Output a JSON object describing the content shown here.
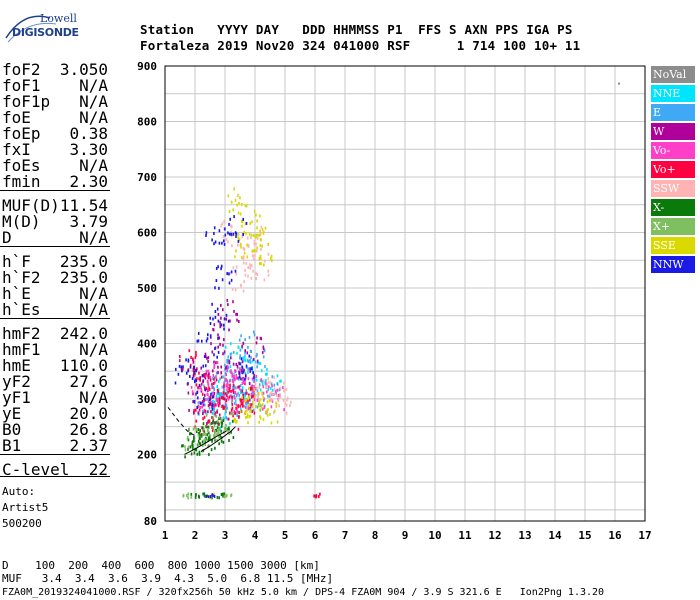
{
  "logo": {
    "line1": "Lowell",
    "line2": "DIGISONDE"
  },
  "header": {
    "labels": "Station   YYYY DAY   DDD HHMMSS P1  FFS S AXN PPS IGA PS",
    "values": "Fortaleza 2019 Nov20 324 041000 RSF      1 714 100 10+ 11"
  },
  "params": [
    {
      "key": "foF2",
      "value": "3.050"
    },
    {
      "key": "foF1",
      "value": "N/A"
    },
    {
      "key": "foF1p",
      "value": "N/A"
    },
    {
      "key": "foE",
      "value": "N/A"
    },
    {
      "key": "foEp",
      "value": "0.38"
    },
    {
      "key": "fxI",
      "value": "3.30"
    },
    {
      "key": "foEs",
      "value": "N/A"
    },
    {
      "key": "fmin",
      "value": "2.30"
    },
    {
      "key": "MUF(D)",
      "value": "11.54"
    },
    {
      "key": "M(D)",
      "value": "3.79"
    },
    {
      "key": "D",
      "value": "N/A"
    },
    {
      "key": "h`F",
      "value": "235.0"
    },
    {
      "key": "h`F2",
      "value": "235.0"
    },
    {
      "key": "h`E",
      "value": "N/A"
    },
    {
      "key": "h`Es",
      "value": "N/A"
    },
    {
      "key": "hmF2",
      "value": "242.0"
    },
    {
      "key": "hmF1",
      "value": "N/A"
    },
    {
      "key": "hmE",
      "value": "110.0"
    },
    {
      "key": "yF2",
      "value": "27.6"
    },
    {
      "key": "yF1",
      "value": "N/A"
    },
    {
      "key": "yE",
      "value": "20.0"
    },
    {
      "key": "B0",
      "value": "26.8"
    },
    {
      "key": "B1",
      "value": "2.37"
    },
    {
      "key": "C-level",
      "value": "22"
    }
  ],
  "auto": {
    "line1": "Auto:",
    "line2": "Artist5",
    "line3": "500200"
  },
  "bottom": {
    "d_row": "D    100  200  400  600  800 1000 1500 3000 [km]",
    "muf_row": "MUF   3.4  3.4  3.6  3.9  4.3  5.0  6.8 11.5 [MHz]"
  },
  "footer": "FZA0M_2019324041000.RSF / 320fx256h 50 kHz 5.0 km / DPS-4 FZA0M 904 / 3.9 S 321.6 E   Ion2Png 1.3.20",
  "legend": [
    {
      "label": "NoVal",
      "color": "#8c8c8c"
    },
    {
      "label": "NNE",
      "color": "#00e5ff"
    },
    {
      "label": "E",
      "color": "#3fa9f5"
    },
    {
      "label": "W",
      "color": "#b0009a"
    },
    {
      "label": "Vo-",
      "color": "#ff3fc8"
    },
    {
      "label": "Vo+",
      "color": "#ff0040"
    },
    {
      "label": "SSW",
      "color": "#ffb3b3"
    },
    {
      "label": "X-",
      "color": "#0a7a0a"
    },
    {
      "label": "X+",
      "color": "#7fbf5f"
    },
    {
      "label": "SSE",
      "color": "#d9d900"
    },
    {
      "label": "NNW",
      "color": "#1a1ae6"
    }
  ],
  "chart_data": {
    "type": "scatter",
    "title": "",
    "xlabel": "",
    "ylabel": "",
    "xlim": [
      1,
      17
    ],
    "ylim": [
      80,
      900
    ],
    "xticks": [
      1,
      2,
      3,
      4,
      5,
      6,
      7,
      8,
      9,
      10,
      11,
      12,
      13,
      14,
      15,
      16,
      17
    ],
    "yticks": [
      80,
      200,
      300,
      400,
      500,
      600,
      700,
      800,
      900
    ],
    "grid": true,
    "legend_position": "right",
    "series": [
      {
        "name": "NoVal",
        "color": "#8c8c8c",
        "points": [
          [
            16.1,
            870
          ]
        ]
      },
      {
        "name": "NNE",
        "color": "#00e5ff",
        "points": [
          [
            2.8,
            300
          ],
          [
            3.1,
            330
          ],
          [
            3.5,
            320
          ],
          [
            3.9,
            350
          ],
          [
            4.2,
            330
          ],
          [
            2.6,
            320
          ],
          [
            3.3,
            380
          ],
          [
            3.7,
            290
          ],
          [
            4.5,
            340
          ],
          [
            2.9,
            270
          ]
        ]
      },
      {
        "name": "E",
        "color": "#3fa9f5",
        "points": [
          [
            3.0,
            340
          ],
          [
            3.4,
            360
          ],
          [
            3.8,
            310
          ],
          [
            4.1,
            370
          ],
          [
            2.7,
            300
          ],
          [
            3.2,
            290
          ],
          [
            4.4,
            320
          ],
          [
            3.6,
            400
          ],
          [
            2.4,
            280
          ],
          [
            4.0,
            300
          ]
        ]
      },
      {
        "name": "W",
        "color": "#b0009a",
        "points": [
          [
            2.2,
            360
          ],
          [
            2.5,
            330
          ],
          [
            2.9,
            380
          ],
          [
            3.3,
            350
          ],
          [
            3.6,
            330
          ],
          [
            2.1,
            300
          ],
          [
            2.8,
            420
          ],
          [
            3.1,
            460
          ],
          [
            2.6,
            280
          ],
          [
            3.9,
            390
          ]
        ]
      },
      {
        "name": "Vo-",
        "color": "#ff3fc8",
        "points": [
          [
            2.4,
            300
          ],
          [
            2.7,
            310
          ],
          [
            3.0,
            290
          ],
          [
            3.3,
            320
          ],
          [
            3.6,
            300
          ],
          [
            3.9,
            320
          ],
          [
            2.2,
            330
          ],
          [
            2.9,
            350
          ],
          [
            3.4,
            340
          ],
          [
            4.2,
            310
          ],
          [
            4.6,
            300
          ]
        ]
      },
      {
        "name": "Vo+",
        "color": "#ff0040",
        "points": [
          [
            2.3,
            260
          ],
          [
            2.6,
            280
          ],
          [
            2.9,
            300
          ],
          [
            3.2,
            310
          ],
          [
            3.5,
            290
          ],
          [
            3.8,
            300
          ],
          [
            2.5,
            320
          ],
          [
            3.1,
            270
          ],
          [
            2.0,
            340
          ],
          [
            1.8,
            370
          ],
          [
            6.1,
            128
          ]
        ]
      },
      {
        "name": "SSW",
        "color": "#ffb3b3",
        "points": [
          [
            3.7,
            560
          ],
          [
            3.9,
            590
          ],
          [
            4.1,
            540
          ],
          [
            3.5,
            520
          ],
          [
            4.3,
            320
          ],
          [
            4.7,
            310
          ],
          [
            4.9,
            300
          ],
          [
            3.2,
            600
          ]
        ]
      },
      {
        "name": "X-",
        "color": "#0a7a0a",
        "points": [
          [
            1.9,
            218
          ],
          [
            2.1,
            224
          ],
          [
            2.3,
            230
          ],
          [
            2.5,
            236
          ],
          [
            2.7,
            244
          ],
          [
            2.9,
            250
          ],
          [
            2.2,
            225
          ],
          [
            2.0,
            128
          ],
          [
            2.4,
            128
          ],
          [
            2.8,
            128
          ]
        ]
      },
      {
        "name": "X+",
        "color": "#7fbf5f",
        "points": [
          [
            2.0,
            230
          ],
          [
            2.6,
            250
          ],
          [
            3.0,
            262
          ],
          [
            2.4,
            240
          ],
          [
            1.7,
            128
          ],
          [
            3.1,
            128
          ]
        ]
      },
      {
        "name": "SSE",
        "color": "#d9d900",
        "points": [
          [
            3.4,
            660
          ],
          [
            3.8,
            620
          ],
          [
            4.0,
            600
          ],
          [
            3.6,
            580
          ],
          [
            4.2,
            560
          ],
          [
            3.9,
            290
          ],
          [
            4.4,
            280
          ],
          [
            4.1,
            300
          ],
          [
            3.6,
            280
          ],
          [
            2.6,
            128
          ]
        ]
      },
      {
        "name": "NNW",
        "color": "#1a1ae6",
        "points": [
          [
            2.0,
            350
          ],
          [
            2.4,
            400
          ],
          [
            2.8,
            450
          ],
          [
            3.0,
            520
          ],
          [
            2.7,
            600
          ],
          [
            3.4,
            610
          ],
          [
            1.6,
            340
          ],
          [
            2.3,
            300
          ],
          [
            3.7,
            360
          ],
          [
            2.5,
            128
          ]
        ]
      }
    ],
    "traces": [
      {
        "name": "o-trace",
        "color": "#000000",
        "points": [
          [
            1.65,
            200
          ],
          [
            2.0,
            210
          ],
          [
            2.4,
            222
          ],
          [
            2.8,
            235
          ],
          [
            3.05,
            242
          ]
        ]
      },
      {
        "name": "x-trace",
        "color": "#000000",
        "points": [
          [
            2.2,
            205
          ],
          [
            2.5,
            215
          ],
          [
            2.9,
            230
          ],
          [
            3.2,
            242
          ],
          [
            3.35,
            250
          ]
        ]
      },
      {
        "name": "extrapolation-dashed",
        "color": "#000000",
        "points": [
          [
            1.1,
            285
          ],
          [
            1.45,
            260
          ],
          [
            1.75,
            242
          ],
          [
            2.05,
            232
          ]
        ]
      }
    ]
  }
}
